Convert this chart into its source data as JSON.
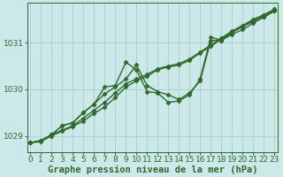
{
  "xlabel": "Graphe pression niveau de la mer (hPa)",
  "background_color": "#cce8e8",
  "grid_color": "#aacccc",
  "line_color": "#2d6a2d",
  "x_ticks": [
    0,
    1,
    2,
    3,
    4,
    5,
    6,
    7,
    8,
    9,
    10,
    11,
    12,
    13,
    14,
    15,
    16,
    17,
    18,
    19,
    20,
    21,
    22,
    23
  ],
  "y_ticks": [
    1029,
    1030,
    1031
  ],
  "ylim": [
    1028.65,
    1031.85
  ],
  "xlim": [
    -0.3,
    23.3
  ],
  "series": [
    [
      1028.85,
      1028.88,
      1029.0,
      1029.1,
      1029.2,
      1029.32,
      1029.48,
      1029.62,
      1029.82,
      1030.05,
      1030.18,
      1030.28,
      1030.42,
      1030.48,
      1030.52,
      1030.62,
      1030.78,
      1030.92,
      1031.08,
      1031.22,
      1031.35,
      1031.48,
      1031.58,
      1031.7
    ],
    [
      1028.85,
      1028.9,
      1029.02,
      1029.12,
      1029.22,
      1029.38,
      1029.55,
      1029.72,
      1029.92,
      1030.12,
      1030.22,
      1030.32,
      1030.44,
      1030.5,
      1030.55,
      1030.65,
      1030.8,
      1030.95,
      1031.1,
      1031.25,
      1031.37,
      1031.5,
      1031.6,
      1031.72
    ],
    [
      1028.85,
      1028.9,
      1029.02,
      1029.22,
      1029.28,
      1029.5,
      1029.68,
      1029.9,
      1030.05,
      1030.22,
      1030.52,
      1030.08,
      1029.95,
      1029.88,
      1029.78,
      1029.92,
      1030.18,
      1031.05,
      1031.05,
      1031.18,
      1031.28,
      1031.42,
      1031.55,
      1031.68
    ],
    [
      1028.85,
      1028.9,
      1029.02,
      1029.22,
      1029.28,
      1029.5,
      1029.68,
      1030.05,
      1030.08,
      1030.58,
      1030.42,
      1029.95,
      1029.92,
      1029.72,
      1029.75,
      1029.88,
      1030.22,
      1031.12,
      1031.05,
      1031.22,
      1031.35,
      1031.45,
      1031.55,
      1031.68
    ]
  ],
  "marker": "D",
  "marker_size": 2.5,
  "line_width": 1.0,
  "tick_fontsize": 6.5,
  "label_fontsize": 7.5
}
